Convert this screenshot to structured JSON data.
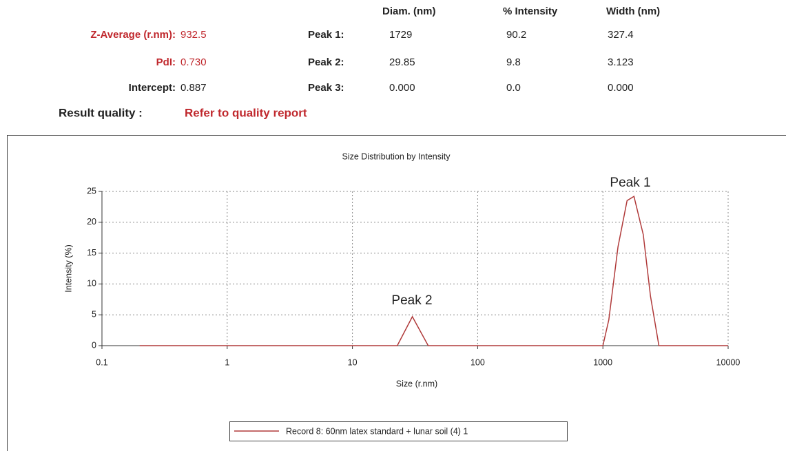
{
  "results": {
    "headers": [
      "Diam. (nm)",
      "% Intensity",
      "Width (nm)"
    ],
    "metrics": [
      {
        "label": "Z-Average (r.nm):",
        "value": "932.5"
      },
      {
        "label": "PdI:",
        "value": "0.730"
      },
      {
        "label": "Intercept:",
        "value": "0.887"
      }
    ],
    "peaks": [
      {
        "label": "Peak 1:",
        "values": [
          "1729",
          "90.2",
          "327.4"
        ]
      },
      {
        "label": "Peak 2:",
        "values": [
          "29.85",
          "9.8",
          "3.123"
        ]
      },
      {
        "label": "Peak 3:",
        "values": [
          "0.000",
          "0.0",
          "0.000"
        ]
      }
    ],
    "quality_label": "Result quality :",
    "quality_value": "Refer to quality report"
  },
  "chart_data": {
    "type": "line",
    "title": "Size Distribution by Intensity",
    "x_label": "Size (r.nm)",
    "y_label": "Intensity (%)",
    "xscale": "log",
    "xlim": [
      0.1,
      10000
    ],
    "ylim": [
      0,
      25
    ],
    "xticks": [
      0.1,
      1,
      10,
      100,
      1000,
      10000
    ],
    "yticks": [
      0,
      5,
      10,
      15,
      20,
      25
    ],
    "grid": true,
    "x": [
      0.2,
      1,
      10,
      22.8,
      30.1,
      40.3,
      100,
      1000,
      1115,
      1320,
      1560,
      1770,
      2100,
      2400,
      2800,
      10000
    ],
    "series": [
      {
        "name": "Record 8: 60nm latex standard + lunar soil (4) 1",
        "color": "#b03a3a",
        "values": [
          0,
          0,
          0,
          0,
          4.7,
          0,
          0,
          0,
          4.2,
          16,
          23.5,
          24.2,
          18,
          8,
          0,
          0
        ]
      }
    ],
    "annotations": [
      "Peak 1",
      "Peak 2"
    ]
  }
}
